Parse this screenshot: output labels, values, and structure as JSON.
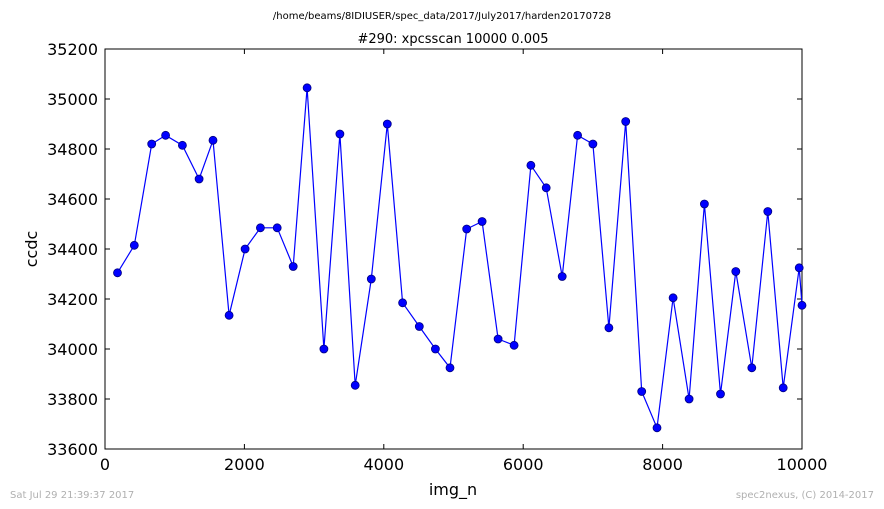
{
  "header": {
    "path": "/home/beams/8IDIUSER/spec_data/2017/July2017/harden20170728",
    "scan_title": "#290: xpcsscan 10000 0.005"
  },
  "footer": {
    "timestamp": "Sat Jul 29 21:39:37 2017",
    "credit": "spec2nexus, (C) 2014-2017"
  },
  "colors": {
    "series": "#0000ff",
    "marker_fill": "#0000ff",
    "marker_edge": "#000080"
  },
  "chart_data": {
    "type": "line",
    "title": "#290: xpcsscan 10000 0.005",
    "xlabel": "img_n",
    "ylabel": "ccdc",
    "xlim": [
      0,
      10000
    ],
    "ylim": [
      33600,
      35200
    ],
    "xticks": [
      "0",
      "2000",
      "4000",
      "6000",
      "8000",
      "10000"
    ],
    "yticks": [
      "33600",
      "33800",
      "34000",
      "34200",
      "34400",
      "34600",
      "34800",
      "35000",
      "35200"
    ],
    "grid": false,
    "series": [
      {
        "markers": true,
        "x": [
          180,
          420,
          670,
          870,
          1110,
          1350,
          1550,
          1780,
          2010,
          2230,
          2470,
          2700,
          2900,
          3140,
          3370,
          3590,
          3820,
          4050,
          4270,
          4510,
          4740,
          4950,
          5190,
          5410,
          5640,
          5870,
          6110,
          6330,
          6560,
          6780,
          7000,
          7230,
          7470,
          7700,
          7920,
          8150,
          8380,
          8600,
          8830,
          9050,
          9280,
          9510,
          9730,
          9960,
          10000
        ],
        "y": [
          34305,
          34415,
          34820,
          34855,
          34815,
          34680,
          34835,
          34135,
          34400,
          34485,
          34485,
          34330,
          35045,
          34000,
          34860,
          33855,
          34280,
          34900,
          34185,
          34090,
          34000,
          33925,
          34480,
          34510,
          34040,
          34015,
          34735,
          34645,
          34290,
          34855,
          34820,
          34085,
          34910,
          33830,
          33685,
          34205,
          33800,
          34580,
          33820,
          34310,
          33925,
          34550,
          33845,
          34325,
          34175
        ]
      }
    ]
  }
}
